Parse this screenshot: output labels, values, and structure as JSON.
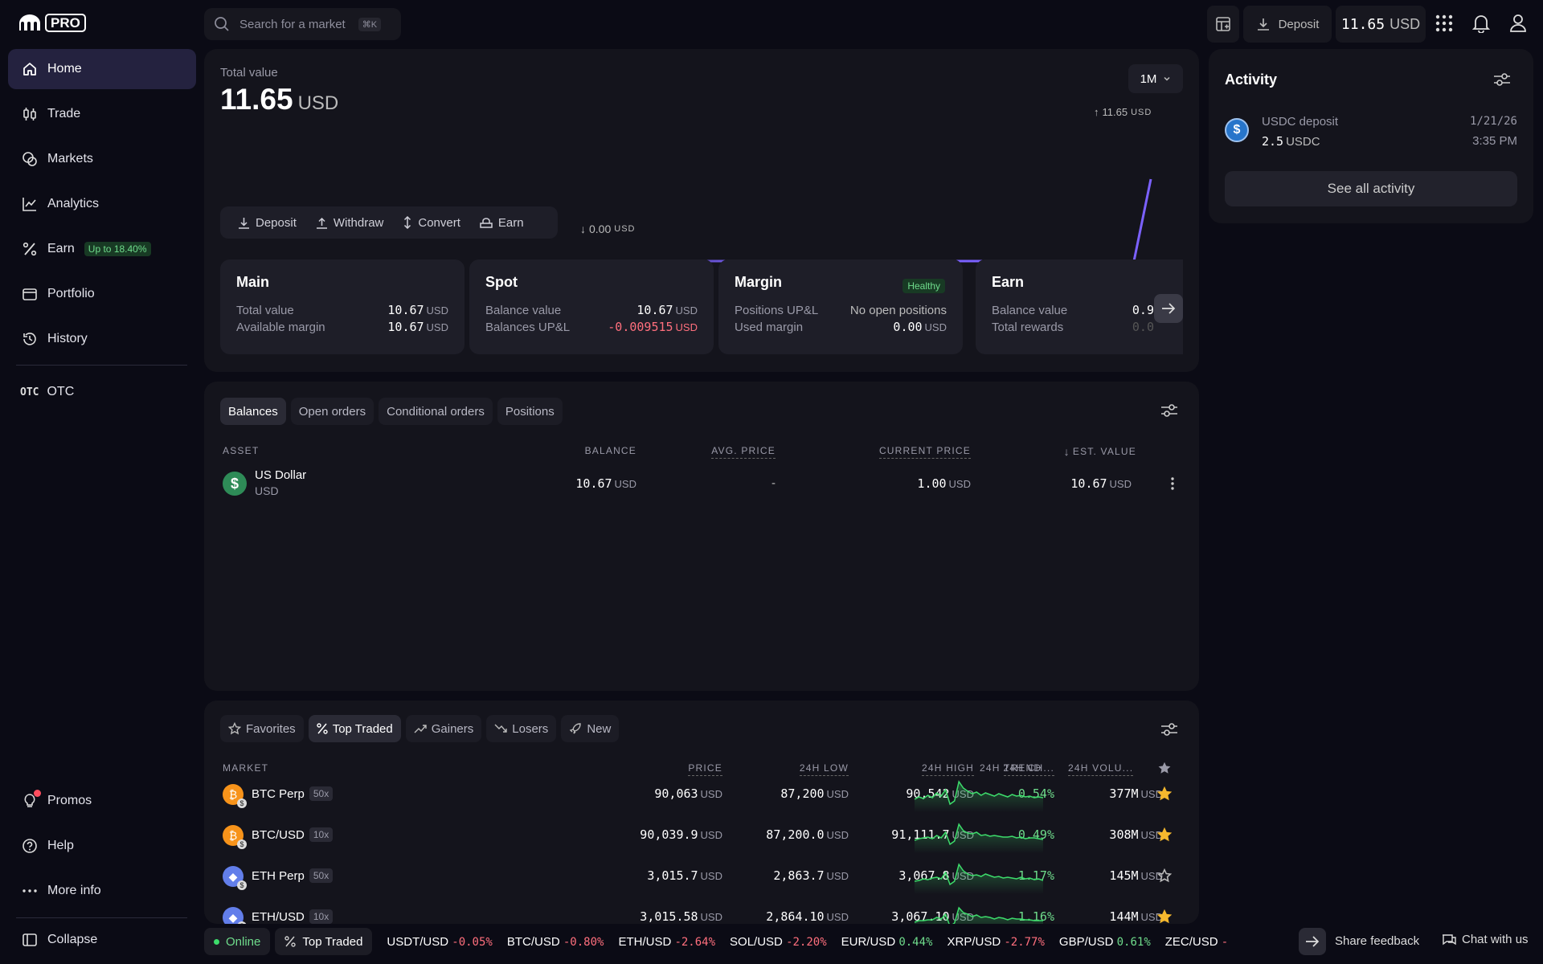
{
  "app": {
    "logo_text": "PRO"
  },
  "search": {
    "placeholder": "Search for a market",
    "shortcut": "⌘K"
  },
  "topbar": {
    "deposit_label": "Deposit",
    "balance_value": "11.65",
    "balance_unit": "USD"
  },
  "sidebar": {
    "items": [
      {
        "label": "Home",
        "icon": "home-icon"
      },
      {
        "label": "Trade",
        "icon": "candles-icon"
      },
      {
        "label": "Markets",
        "icon": "coins-icon"
      },
      {
        "label": "Analytics",
        "icon": "chart-line-icon"
      },
      {
        "label": "Earn",
        "icon": "percent-icon",
        "badge": "Up to 18.40%"
      },
      {
        "label": "Portfolio",
        "icon": "wallet-icon"
      },
      {
        "label": "History",
        "icon": "history-icon"
      }
    ],
    "otc": {
      "icon_text": "OTC",
      "label": "OTC"
    },
    "bottom": {
      "promos": "Promos",
      "help": "Help",
      "more_info": "More info",
      "collapse": "Collapse"
    }
  },
  "overview": {
    "label": "Total value",
    "value": "11.65",
    "unit": "USD",
    "range": "1M",
    "chart_high": "11.65",
    "chart_low": "0.00",
    "chart_unit": "USD",
    "actions": [
      "Deposit",
      "Withdraw",
      "Convert",
      "Earn"
    ]
  },
  "accounts": {
    "main": {
      "title": "Main",
      "r1_label": "Total value",
      "r1_value": "10.67",
      "r2_label": "Available margin",
      "r2_value": "10.67",
      "unit": "USD"
    },
    "spot": {
      "title": "Spot",
      "r1_label": "Balance value",
      "r1_value": "10.67",
      "r2_label": "Balances UP&L",
      "r2_value": "-0.009515",
      "unit": "USD"
    },
    "margin": {
      "title": "Margin",
      "badge": "Healthy",
      "r1_label": "Positions UP&L",
      "r1_value": "No open positions",
      "r2_label": "Used margin",
      "r2_value": "0.00",
      "unit": "USD"
    },
    "earn": {
      "title": "Earn",
      "r1_label": "Balance value",
      "r1_value": "0.9",
      "r2_label": "Total rewards",
      "r2_value": "0.0"
    }
  },
  "balances": {
    "tabs": [
      "Balances",
      "Open orders",
      "Conditional orders",
      "Positions"
    ],
    "columns": [
      "ASSET",
      "BALANCE",
      "AVG. PRICE",
      "CURRENT PRICE",
      "EST. VALUE"
    ],
    "rows": [
      {
        "name": "US Dollar",
        "code": "USD",
        "balance": "10.67",
        "avg_price": "-",
        "current_price": "1.00",
        "est_value": "10.67",
        "unit": "USD"
      }
    ]
  },
  "markets": {
    "tabs": [
      "Favorites",
      "Top Traded",
      "Gainers",
      "Losers",
      "New"
    ],
    "columns": [
      "MARKET",
      "PRICE",
      "24H LOW",
      "24H HIGH",
      "24H CH...",
      "24H TREND",
      "24H VOLU..."
    ],
    "rows": [
      {
        "name": "BTC Perp",
        "lev": "50x",
        "price": "90,063",
        "low": "87,200",
        "high": "90,542",
        "change": "0.54%",
        "volume": "377M",
        "fav": true,
        "coin": "btc"
      },
      {
        "name": "BTC/USD",
        "lev": "10x",
        "price": "90,039.9",
        "low": "87,200.0",
        "high": "91,111.7",
        "change": "0.49%",
        "volume": "308M",
        "fav": true,
        "coin": "btc"
      },
      {
        "name": "ETH Perp",
        "lev": "50x",
        "price": "3,015.7",
        "low": "2,863.7",
        "high": "3,067.8",
        "change": "1.17%",
        "volume": "145M",
        "fav": false,
        "coin": "eth"
      },
      {
        "name": "ETH/USD",
        "lev": "10x",
        "price": "3,015.58",
        "low": "2,864.10",
        "high": "3,067.10",
        "change": "1.16%",
        "volume": "144M",
        "fav": true,
        "coin": "eth"
      }
    ],
    "unit": "USD"
  },
  "activity": {
    "title": "Activity",
    "items": [
      {
        "title": "USDC deposit",
        "amount": "2.5",
        "asset": "USDC",
        "date": "1/21/26",
        "time": "3:35 PM"
      }
    ],
    "see_all": "See all activity"
  },
  "statusbar": {
    "online": "Online",
    "top_traded": "Top Traded",
    "tickers": [
      {
        "pair": "USDT/USD",
        "change": "-0.05%"
      },
      {
        "pair": "BTC/USD",
        "change": "-0.80%"
      },
      {
        "pair": "ETH/USD",
        "change": "-2.64%"
      },
      {
        "pair": "SOL/USD",
        "change": "-2.20%"
      },
      {
        "pair": "EUR/USD",
        "change": "0.44%"
      },
      {
        "pair": "XRP/USD",
        "change": "-2.77%"
      },
      {
        "pair": "GBP/USD",
        "change": "0.61%"
      },
      {
        "pair": "ZEC/USD",
        "change": "-"
      }
    ],
    "share_feedback": "Share feedback",
    "chat": "Chat with us"
  },
  "colors": {
    "accent": "#7b61ff",
    "positive": "#6fdc8c",
    "negative": "#ff6f7d",
    "star": "#f5b82e"
  }
}
